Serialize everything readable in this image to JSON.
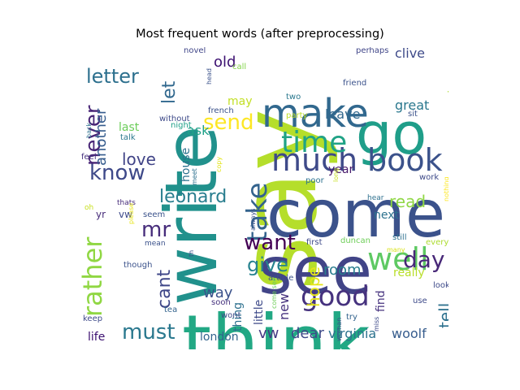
{
  "chart_data": {
    "type": "wordcloud",
    "title": "Most frequent words (after preprocessing)",
    "words": [
      {
        "text": "say",
        "weight": 100,
        "color": "#b5de2b",
        "orient": "v"
      },
      {
        "text": "think",
        "weight": 96,
        "color": "#22a884",
        "orient": "h"
      },
      {
        "text": "come",
        "weight": 92,
        "color": "#3b528b",
        "orient": "h"
      },
      {
        "text": "see",
        "weight": 90,
        "color": "#414487",
        "orient": "h"
      },
      {
        "text": "write",
        "weight": 88,
        "color": "#21918c",
        "orient": "v"
      },
      {
        "text": "go",
        "weight": 80,
        "color": "#1f9e89",
        "orient": "h"
      },
      {
        "text": "make",
        "weight": 62,
        "color": "#31688e",
        "orient": "h"
      },
      {
        "text": "much",
        "weight": 56,
        "color": "#3e4a89",
        "orient": "h"
      },
      {
        "text": "book",
        "weight": 56,
        "color": "#3b528b",
        "orient": "h"
      },
      {
        "text": "time",
        "weight": 52,
        "color": "#20a386",
        "orient": "h"
      },
      {
        "text": "well",
        "weight": 50,
        "color": "#5ec962",
        "orient": "h"
      },
      {
        "text": "good",
        "weight": 46,
        "color": "#46327e",
        "orient": "h"
      },
      {
        "text": "take",
        "weight": 44,
        "color": "#33638d",
        "orient": "v"
      },
      {
        "text": "letter",
        "weight": 40,
        "color": "#2d708e",
        "orient": "h"
      },
      {
        "text": "send",
        "weight": 38,
        "color": "#fde725",
        "orient": "h"
      },
      {
        "text": "want",
        "weight": 38,
        "color": "#440154",
        "orient": "h"
      },
      {
        "text": "day",
        "weight": 38,
        "color": "#482878",
        "orient": "h"
      },
      {
        "text": "know",
        "weight": 36,
        "color": "#3e4989",
        "orient": "h"
      },
      {
        "text": "must",
        "weight": 36,
        "color": "#2a788e",
        "orient": "h"
      },
      {
        "text": "rather",
        "weight": 34,
        "color": "#90d743",
        "orient": "v"
      },
      {
        "text": "mr",
        "weight": 34,
        "color": "#472d7b",
        "orient": "h"
      },
      {
        "text": "give",
        "weight": 32,
        "color": "#26828e",
        "orient": "h"
      },
      {
        "text": "leonard",
        "weight": 30,
        "color": "#287d8e",
        "orient": "h"
      },
      {
        "text": "never",
        "weight": 30,
        "color": "#482576",
        "orient": "v"
      },
      {
        "text": "old",
        "weight": 28,
        "color": "#3b0f70",
        "orient": "h"
      },
      {
        "text": "read",
        "weight": 28,
        "color": "#8fd744",
        "orient": "h"
      },
      {
        "text": "tell",
        "weight": 28,
        "color": "#2d718e",
        "orient": "v"
      },
      {
        "text": "hope",
        "weight": 26,
        "color": "#e5e419",
        "orient": "v"
      },
      {
        "text": "cant",
        "weight": 26,
        "color": "#3f4788",
        "orient": "v"
      },
      {
        "text": "another",
        "weight": 24,
        "color": "#365c8d",
        "orient": "v"
      },
      {
        "text": "let",
        "weight": 24,
        "color": "#31688e",
        "orient": "v"
      },
      {
        "text": "ask",
        "weight": 24,
        "color": "#1fa188",
        "orient": "h"
      },
      {
        "text": "love",
        "weight": 22,
        "color": "#414487",
        "orient": "h"
      },
      {
        "text": "way",
        "weight": 22,
        "color": "#3b528b",
        "orient": "h"
      },
      {
        "text": "room",
        "weight": 20,
        "color": "#287d8e",
        "orient": "h"
      },
      {
        "text": "dear",
        "weight": 20,
        "color": "#3e4a89",
        "orient": "h"
      },
      {
        "text": "virginia",
        "weight": 20,
        "color": "#2c728e",
        "orient": "h"
      },
      {
        "text": "woolf",
        "weight": 20,
        "color": "#365c8d",
        "orient": "h"
      },
      {
        "text": "vw",
        "weight": 20,
        "color": "#443983",
        "orient": "h"
      },
      {
        "text": "new",
        "weight": 18,
        "color": "#46327e",
        "orient": "v"
      },
      {
        "text": "leave",
        "weight": 18,
        "color": "#31688e",
        "orient": "h"
      },
      {
        "text": "clive",
        "weight": 18,
        "color": "#3e4a89",
        "orient": "h"
      },
      {
        "text": "great",
        "weight": 16,
        "color": "#2a788e",
        "orient": "h"
      },
      {
        "text": "people",
        "weight": 16,
        "color": "#addc30",
        "orient": "v"
      },
      {
        "text": "last",
        "weight": 16,
        "color": "#6ccd5a",
        "orient": "h"
      },
      {
        "text": "may",
        "weight": 16,
        "color": "#c2df23",
        "orient": "h"
      },
      {
        "text": "life",
        "weight": 16,
        "color": "#3b0f70",
        "orient": "h"
      },
      {
        "text": "london",
        "weight": 16,
        "color": "#32648e",
        "orient": "h"
      },
      {
        "text": "find",
        "weight": 14,
        "color": "#46327e",
        "orient": "v"
      },
      {
        "text": "house",
        "weight": 14,
        "color": "#2c728e",
        "orient": "v"
      },
      {
        "text": "little",
        "weight": 14,
        "color": "#3e4a89",
        "orient": "v"
      },
      {
        "text": "thing",
        "weight": 14,
        "color": "#2d708e",
        "orient": "v"
      },
      {
        "text": "year",
        "weight": 14,
        "color": "#481a6c",
        "orient": "h"
      },
      {
        "text": "next",
        "weight": 14,
        "color": "#2c728e",
        "orient": "h"
      },
      {
        "text": "really",
        "weight": 14,
        "color": "#b8de29",
        "orient": "h"
      },
      {
        "text": "yr",
        "weight": 14,
        "color": "#472c7a",
        "orient": "h"
      },
      {
        "text": "vw",
        "weight": 14,
        "color": "#3e4a89",
        "orient": "h"
      },
      {
        "text": "novel",
        "weight": 10,
        "color": "#404688",
        "orient": "h"
      },
      {
        "text": "perhaps",
        "weight": 10,
        "color": "#404688",
        "orient": "h"
      },
      {
        "text": "wish",
        "weight": 10,
        "color": "#6ece58",
        "orient": "v"
      },
      {
        "text": "call",
        "weight": 10,
        "color": "#84d44b",
        "orient": "h"
      },
      {
        "text": "friend",
        "weight": 10,
        "color": "#3b528b",
        "orient": "h"
      },
      {
        "text": "two",
        "weight": 10,
        "color": "#2a788e",
        "orient": "h"
      },
      {
        "text": "party",
        "weight": 10,
        "color": "#bddf26",
        "orient": "h"
      },
      {
        "text": "sit",
        "weight": 10,
        "color": "#3b528b",
        "orient": "h"
      },
      {
        "text": "french",
        "weight": 10,
        "color": "#3b528b",
        "orient": "h"
      },
      {
        "text": "without",
        "weight": 10,
        "color": "#3e4a89",
        "orient": "h"
      },
      {
        "text": "night",
        "weight": 10,
        "color": "#1fa088",
        "orient": "h"
      },
      {
        "text": "back",
        "weight": 9,
        "color": "#2d718e",
        "orient": "v"
      },
      {
        "text": "talk",
        "weight": 10,
        "color": "#2a788e",
        "orient": "h"
      },
      {
        "text": "feel",
        "weight": 10,
        "color": "#46327e",
        "orient": "h"
      },
      {
        "text": "copy",
        "weight": 9,
        "color": "#e2e418",
        "orient": "v"
      },
      {
        "text": "meet",
        "weight": 9,
        "color": "#2d708e",
        "orient": "v"
      },
      {
        "text": "poor",
        "weight": 10,
        "color": "#2c728e",
        "orient": "h"
      },
      {
        "text": "long",
        "weight": 9,
        "color": "#c8e020",
        "orient": "v"
      },
      {
        "text": "work",
        "weight": 10,
        "color": "#3e4a89",
        "orient": "h"
      },
      {
        "text": "nothing",
        "weight": 9,
        "color": "#fde725",
        "orient": "v"
      },
      {
        "text": "thats",
        "weight": 10,
        "color": "#472c7a",
        "orient": "h"
      },
      {
        "text": "seem",
        "weight": 10,
        "color": "#3b528b",
        "orient": "h"
      },
      {
        "text": "oh",
        "weight": 9,
        "color": "#c8e020",
        "orient": "h"
      },
      {
        "text": "always",
        "weight": 9,
        "color": "#3b528b",
        "orient": "v"
      },
      {
        "text": "hear",
        "weight": 10,
        "color": "#2d708e",
        "orient": "h"
      },
      {
        "text": "th",
        "weight": 9,
        "color": "#3b528b",
        "orient": "v"
      },
      {
        "text": "mean",
        "weight": 9,
        "color": "#3b528b",
        "orient": "h"
      },
      {
        "text": "first",
        "weight": 10,
        "color": "#3e4a89",
        "orient": "h"
      },
      {
        "text": "duncan",
        "weight": 10,
        "color": "#6ece58",
        "orient": "h"
      },
      {
        "text": "still",
        "weight": 10,
        "color": "#2d708e",
        "orient": "h"
      },
      {
        "text": "every",
        "weight": 10,
        "color": "#addc30",
        "orient": "h"
      },
      {
        "text": "many",
        "weight": 9,
        "color": "#d8e219",
        "orient": "h"
      },
      {
        "text": "please",
        "weight": 9,
        "color": "#e7e419",
        "orient": "v"
      },
      {
        "text": "though",
        "weight": 10,
        "color": "#3b528b",
        "orient": "h"
      },
      {
        "text": "article",
        "weight": 10,
        "color": "#3b528b",
        "orient": "h"
      },
      {
        "text": "look",
        "weight": 10,
        "color": "#3e4a89",
        "orient": "h"
      },
      {
        "text": "come see",
        "weight": 8,
        "color": "#6ece58",
        "orient": "v"
      },
      {
        "text": "woman",
        "weight": 8,
        "color": "#3e4a89",
        "orient": "v"
      },
      {
        "text": "use",
        "weight": 10,
        "color": "#3e4a89",
        "orient": "h"
      },
      {
        "text": "tea",
        "weight": 10,
        "color": "#33638d",
        "orient": "h"
      },
      {
        "text": "soon",
        "weight": 10,
        "color": "#46327e",
        "orient": "h"
      },
      {
        "text": "wont",
        "weight": 10,
        "color": "#3e4a89",
        "orient": "h"
      },
      {
        "text": "keep",
        "weight": 10,
        "color": "#3e4a89",
        "orient": "h"
      },
      {
        "text": "miss",
        "weight": 8,
        "color": "#3e4a89",
        "orient": "v"
      },
      {
        "text": "try",
        "weight": 10,
        "color": "#33638d",
        "orient": "h"
      },
      {
        "text": "head",
        "weight": 8,
        "color": "#3b528b",
        "orient": "v"
      }
    ]
  }
}
